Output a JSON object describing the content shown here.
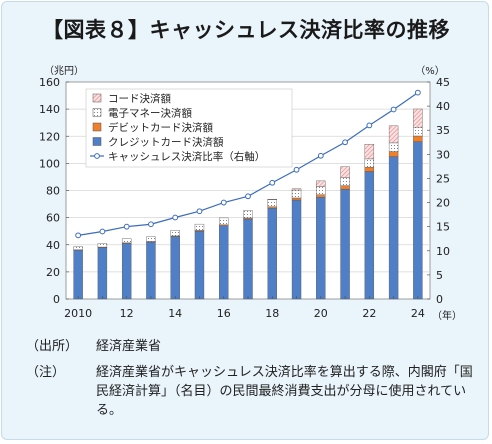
{
  "title": "【図表８】キャッシュレス決済比率の推移",
  "source": {
    "label": "（出所）",
    "text": "経済産業省"
  },
  "note": {
    "label": "（注）",
    "text": "経済産業省がキャッシュレス決済比率を算出する際、内閣府「国民経済計算」（名目）の民間最終消費支出が分母に使用されている。"
  },
  "colors": {
    "credit": "#4f7fc6",
    "debit": "#f07f2a",
    "emoney": "#ffffff",
    "code": "#e88a8a",
    "ratio": "#3b6cbf",
    "background": "#e9f4fb"
  },
  "chart_data": {
    "type": "bar+line",
    "xlabel_unit": "（年）",
    "ylabel_left_unit": "（兆円）",
    "ylabel_right_unit": "（%）",
    "ylim_left": [
      0,
      160
    ],
    "yticks_left": [
      0,
      20,
      40,
      60,
      80,
      100,
      120,
      140,
      160
    ],
    "ylim_right": [
      0,
      45
    ],
    "yticks_right": [
      0,
      5,
      10,
      15,
      20,
      25,
      30,
      35,
      40,
      45
    ],
    "x_years": [
      2010,
      2011,
      2012,
      2013,
      2014,
      2015,
      2016,
      2017,
      2018,
      2019,
      2020,
      2021,
      2022,
      2023,
      2024
    ],
    "x_tick_labels": [
      "2010",
      "",
      "12",
      "",
      "14",
      "",
      "16",
      "",
      "18",
      "",
      "20",
      "",
      "22",
      "",
      "24"
    ],
    "legend": [
      "コード決済額",
      "電子マネー決済額",
      "デビットカード決済額",
      "クレジットカード決済額",
      "キャッシュレス決済比率（右軸）"
    ],
    "stack_series": [
      {
        "name": "クレジットカード決済額",
        "values": [
          36,
          38,
          41,
          42,
          46,
          50,
          54,
          59,
          67,
          73,
          75,
          81,
          94,
          105,
          116
        ]
      },
      {
        "name": "デビットカード決済額",
        "values": [
          0.3,
          0.3,
          0.4,
          0.4,
          0.5,
          0.6,
          0.7,
          0.8,
          1.0,
          1.5,
          1.9,
          2.6,
          3.2,
          3.7,
          4.2
        ]
      },
      {
        "name": "電子マネー決済額",
        "values": [
          2.3,
          2.6,
          3.0,
          3.5,
          4.1,
          4.6,
          5.1,
          5.4,
          5.4,
          5.8,
          6.0,
          6.0,
          6.1,
          6.4,
          6.4
        ]
      },
      {
        "name": "コード決済額",
        "values": [
          0,
          0,
          0,
          0,
          0,
          0,
          0,
          0,
          0.2,
          1.0,
          4.2,
          7.9,
          10.8,
          12.6,
          13.5
        ]
      }
    ],
    "line_series": {
      "name": "キャッシュレス決済比率（右軸）",
      "values": [
        13.2,
        14.0,
        15.0,
        15.5,
        16.9,
        18.2,
        20.0,
        21.3,
        24.1,
        26.8,
        29.7,
        32.5,
        36.0,
        39.3,
        42.8
      ]
    }
  }
}
